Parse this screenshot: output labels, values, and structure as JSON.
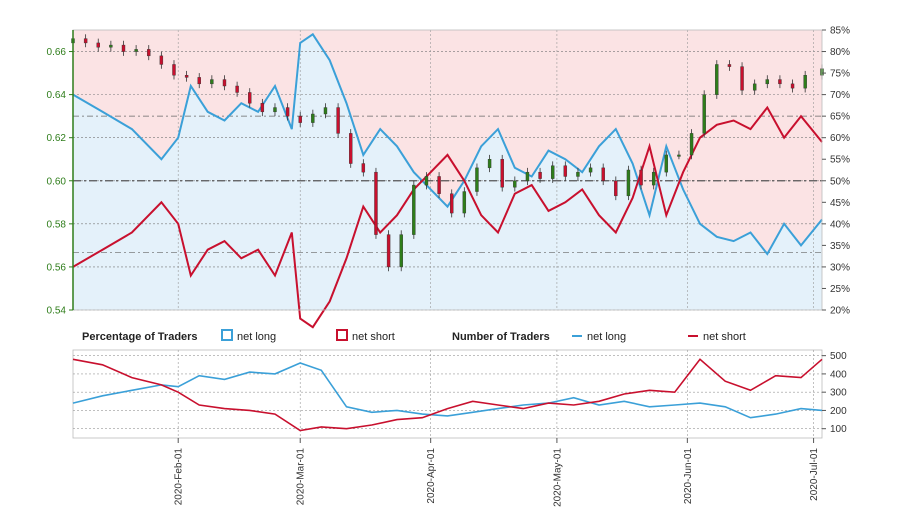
{
  "chart_data": [
    {
      "type": "line",
      "y_left": {
        "range": [
          0.54,
          0.67
        ],
        "ticks": [
          "0.54",
          "0.56",
          "0.58",
          "0.60",
          "0.62",
          "0.64",
          "0.66"
        ]
      },
      "y_right": {
        "range": [
          20,
          85
        ],
        "ticks": [
          "20%",
          "25%",
          "30%",
          "35%",
          "40%",
          "45%",
          "50%",
          "55%",
          "60%",
          "65%",
          "70%",
          "75%",
          "80%",
          "85%"
        ]
      },
      "x_ticks": [
        "2020-Feb-01",
        "2020-Mar-01",
        "2020-Apr-01",
        "2020-May-01",
        "2020-Jun-01",
        "2020-Jul-01"
      ],
      "x_range": [
        "2020-01-07",
        "2020-07-03"
      ],
      "reference_line_pct": 50,
      "series": [
        {
          "name": "net long",
          "color": "#3ba0d8",
          "x": [
            "2020-01-07",
            "2020-01-14",
            "2020-01-21",
            "2020-01-28",
            "2020-02-01",
            "2020-02-04",
            "2020-02-08",
            "2020-02-12",
            "2020-02-16",
            "2020-02-20",
            "2020-02-24",
            "2020-02-28",
            "2020-03-01",
            "2020-03-04",
            "2020-03-08",
            "2020-03-12",
            "2020-03-16",
            "2020-03-20",
            "2020-03-24",
            "2020-03-28",
            "2020-04-01",
            "2020-04-05",
            "2020-04-09",
            "2020-04-13",
            "2020-04-17",
            "2020-04-21",
            "2020-04-25",
            "2020-04-29",
            "2020-05-03",
            "2020-05-07",
            "2020-05-11",
            "2020-05-15",
            "2020-05-19",
            "2020-05-23",
            "2020-05-27",
            "2020-05-31",
            "2020-06-04",
            "2020-06-08",
            "2020-06-12",
            "2020-06-16",
            "2020-06-20",
            "2020-06-24",
            "2020-06-28",
            "2020-07-03"
          ],
          "values": [
            70,
            66,
            62,
            55,
            60,
            72,
            66,
            64,
            68,
            66,
            72,
            62,
            82,
            84,
            78,
            68,
            56,
            62,
            58,
            52,
            48,
            44,
            50,
            58,
            62,
            53,
            51,
            57,
            55,
            52,
            58,
            62,
            54,
            42,
            58,
            48,
            40,
            37,
            36,
            38,
            33,
            40,
            35,
            41
          ]
        },
        {
          "name": "net short",
          "color": "#c8102e",
          "x": [
            "2020-01-07",
            "2020-01-14",
            "2020-01-21",
            "2020-01-28",
            "2020-02-01",
            "2020-02-04",
            "2020-02-08",
            "2020-02-12",
            "2020-02-16",
            "2020-02-20",
            "2020-02-24",
            "2020-02-28",
            "2020-03-01",
            "2020-03-04",
            "2020-03-08",
            "2020-03-12",
            "2020-03-16",
            "2020-03-20",
            "2020-03-24",
            "2020-03-28",
            "2020-04-01",
            "2020-04-05",
            "2020-04-09",
            "2020-04-13",
            "2020-04-17",
            "2020-04-21",
            "2020-04-25",
            "2020-04-29",
            "2020-05-03",
            "2020-05-07",
            "2020-05-11",
            "2020-05-15",
            "2020-05-19",
            "2020-05-23",
            "2020-05-27",
            "2020-05-31",
            "2020-06-04",
            "2020-06-08",
            "2020-06-12",
            "2020-06-16",
            "2020-06-20",
            "2020-06-24",
            "2020-06-28",
            "2020-07-03"
          ],
          "values": [
            30,
            34,
            38,
            45,
            40,
            28,
            34,
            36,
            32,
            34,
            28,
            38,
            18,
            16,
            22,
            32,
            44,
            38,
            42,
            48,
            52,
            56,
            50,
            42,
            38,
            47,
            49,
            43,
            45,
            48,
            42,
            38,
            46,
            58,
            42,
            52,
            60,
            63,
            64,
            62,
            67,
            60,
            65,
            59
          ]
        }
      ],
      "candles": {
        "name": "price",
        "up_color": "#2e7d1a",
        "down_color": "#c8102e",
        "x": [
          "2020-01-07",
          "2020-01-10",
          "2020-01-13",
          "2020-01-16",
          "2020-01-19",
          "2020-01-22",
          "2020-01-25",
          "2020-01-28",
          "2020-01-31",
          "2020-02-03",
          "2020-02-06",
          "2020-02-09",
          "2020-02-12",
          "2020-02-15",
          "2020-02-18",
          "2020-02-21",
          "2020-02-24",
          "2020-02-27",
          "2020-03-01",
          "2020-03-04",
          "2020-03-07",
          "2020-03-10",
          "2020-03-13",
          "2020-03-16",
          "2020-03-19",
          "2020-03-22",
          "2020-03-25",
          "2020-03-28",
          "2020-03-31",
          "2020-04-03",
          "2020-04-06",
          "2020-04-09",
          "2020-04-12",
          "2020-04-15",
          "2020-04-18",
          "2020-04-21",
          "2020-04-24",
          "2020-04-27",
          "2020-04-30",
          "2020-05-03",
          "2020-05-06",
          "2020-05-09",
          "2020-05-12",
          "2020-05-15",
          "2020-05-18",
          "2020-05-21",
          "2020-05-24",
          "2020-05-27",
          "2020-05-30",
          "2020-06-02",
          "2020-06-05",
          "2020-06-08",
          "2020-06-11",
          "2020-06-14",
          "2020-06-17",
          "2020-06-20",
          "2020-06-23",
          "2020-06-26",
          "2020-06-29",
          "2020-07-03"
        ],
        "close": [
          0.666,
          0.664,
          0.662,
          0.663,
          0.66,
          0.661,
          0.658,
          0.654,
          0.649,
          0.648,
          0.645,
          0.647,
          0.644,
          0.641,
          0.636,
          0.632,
          0.634,
          0.63,
          0.627,
          0.631,
          0.634,
          0.622,
          0.608,
          0.604,
          0.575,
          0.56,
          0.575,
          0.598,
          0.602,
          0.594,
          0.585,
          0.595,
          0.606,
          0.61,
          0.597,
          0.6,
          0.604,
          0.601,
          0.607,
          0.602,
          0.604,
          0.606,
          0.6,
          0.593,
          0.605,
          0.598,
          0.604,
          0.612,
          0.612,
          0.622,
          0.64,
          0.654,
          0.653,
          0.642,
          0.645,
          0.647,
          0.645,
          0.643,
          0.649,
          0.652
        ]
      }
    },
    {
      "type": "line",
      "y_right": {
        "range": [
          60,
          520
        ],
        "ticks": [
          "100",
          "200",
          "300",
          "400",
          "500"
        ]
      },
      "series": [
        {
          "name": "net long",
          "color": "#3ba0d8",
          "x": [
            "2020-01-07",
            "2020-01-14",
            "2020-01-21",
            "2020-01-28",
            "2020-02-01",
            "2020-02-06",
            "2020-02-12",
            "2020-02-18",
            "2020-02-24",
            "2020-03-01",
            "2020-03-06",
            "2020-03-12",
            "2020-03-18",
            "2020-03-24",
            "2020-03-30",
            "2020-04-05",
            "2020-04-11",
            "2020-04-17",
            "2020-04-23",
            "2020-04-29",
            "2020-05-05",
            "2020-05-11",
            "2020-05-17",
            "2020-05-23",
            "2020-05-29",
            "2020-06-04",
            "2020-06-10",
            "2020-06-16",
            "2020-06-22",
            "2020-06-28",
            "2020-07-03"
          ],
          "values": [
            240,
            280,
            310,
            340,
            330,
            390,
            370,
            410,
            400,
            460,
            420,
            220,
            190,
            200,
            180,
            170,
            190,
            210,
            230,
            240,
            270,
            230,
            250,
            220,
            230,
            240,
            220,
            160,
            180,
            210,
            200
          ]
        },
        {
          "name": "net short",
          "color": "#c8102e",
          "x": [
            "2020-01-07",
            "2020-01-14",
            "2020-01-21",
            "2020-01-28",
            "2020-02-01",
            "2020-02-06",
            "2020-02-12",
            "2020-02-18",
            "2020-02-24",
            "2020-03-01",
            "2020-03-06",
            "2020-03-12",
            "2020-03-18",
            "2020-03-24",
            "2020-03-30",
            "2020-04-05",
            "2020-04-11",
            "2020-04-17",
            "2020-04-23",
            "2020-04-29",
            "2020-05-05",
            "2020-05-11",
            "2020-05-17",
            "2020-05-23",
            "2020-05-29",
            "2020-06-04",
            "2020-06-10",
            "2020-06-16",
            "2020-06-22",
            "2020-06-28",
            "2020-07-03"
          ],
          "values": [
            480,
            450,
            380,
            340,
            300,
            230,
            210,
            200,
            180,
            90,
            110,
            100,
            120,
            150,
            160,
            210,
            250,
            230,
            210,
            240,
            230,
            250,
            290,
            310,
            300,
            480,
            360,
            310,
            390,
            380,
            480
          ]
        }
      ]
    }
  ],
  "legend": {
    "pct_title": "Percentage of Traders",
    "num_title": "Number of Traders",
    "net_long": "net long",
    "net_short": "net short"
  },
  "colors": {
    "long": "#3ba0d8",
    "short": "#c8102e",
    "long_fill": "#e4f1fa",
    "short_fill": "#fbe3e4",
    "candle_up": "#2e7d1a",
    "candle_down": "#c8102e",
    "left_axis": "#2e7d1a"
  }
}
